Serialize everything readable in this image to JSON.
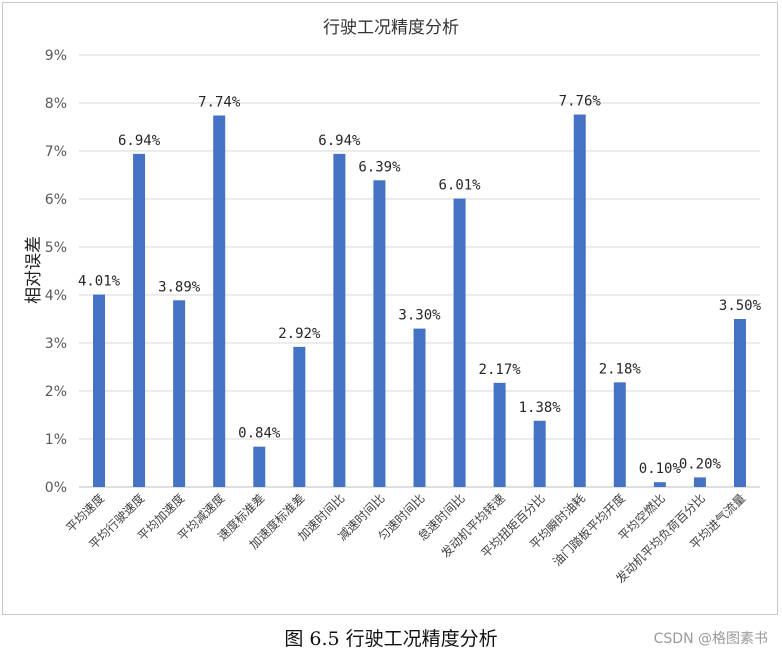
{
  "chart_data": {
    "type": "bar",
    "title": "行驶工况精度分析",
    "ylabel": "相对误差",
    "xlabel": "",
    "ylim": [
      0,
      9
    ],
    "yticks": [
      "0%",
      "1%",
      "2%",
      "3%",
      "4%",
      "5%",
      "6%",
      "7%",
      "8%",
      "9%"
    ],
    "grid": true,
    "color": "#4472C4",
    "categories": [
      "平均速度",
      "平均行驶速度",
      "平均加速度",
      "平均减速度",
      "速度标准差",
      "加速度标准差",
      "加速时间比",
      "减速时间比",
      "匀速时间比",
      "怠速时间比",
      "发动机平均转速",
      "平均扭矩百分比",
      "平均瞬时油耗",
      "油门踏板平均开度",
      "平均空燃比",
      "发动机平均负荷百分比",
      "平均进气流量"
    ],
    "values": [
      4.01,
      6.94,
      3.89,
      7.74,
      0.84,
      2.92,
      6.94,
      6.39,
      3.3,
      6.01,
      2.17,
      1.38,
      7.76,
      2.18,
      0.1,
      0.2,
      3.5
    ],
    "labels": [
      "4.01%",
      "6.94%",
      "3.89%",
      "7.74%",
      "0.84%",
      "2.92%",
      "6.94%",
      "6.39%",
      "3.30%",
      "6.01%",
      "2.17%",
      "1.38%",
      "7.76%",
      "2.18%",
      "0.10%",
      "0.20%",
      "3.50%"
    ]
  },
  "caption": "图 6.5 行驶工况精度分析",
  "watermark": "CSDN @格图素书"
}
